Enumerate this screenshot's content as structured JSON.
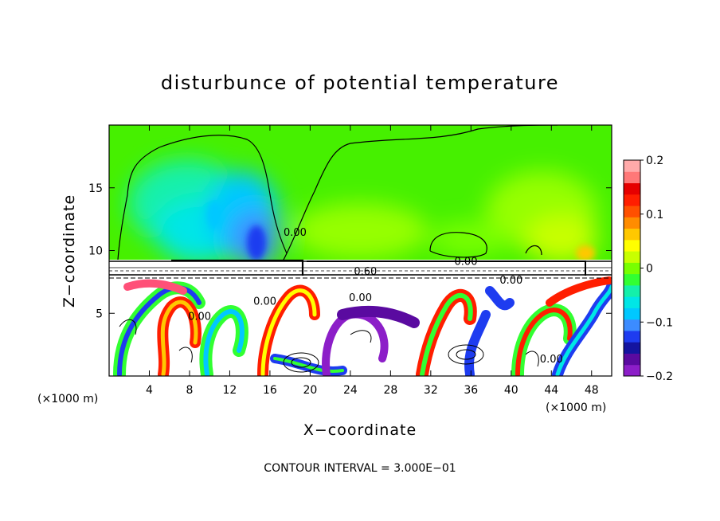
{
  "chart_data": {
    "type": "heatmap",
    "title": "disturbunce of potential temperature",
    "xlabel": "X−coordinate",
    "ylabel": "Z−coordinate",
    "x_unit": "(×1000 m)",
    "z_unit": "(×1000 m)",
    "xlim": [
      0,
      50
    ],
    "ylim": [
      0,
      20
    ],
    "x_ticks": [
      4,
      8,
      12,
      16,
      20,
      24,
      28,
      32,
      36,
      40,
      44,
      48
    ],
    "y_ticks": [
      5,
      10,
      15
    ],
    "colorbar": {
      "range": [
        -0.2,
        0.2
      ],
      "ticks": [
        {
          "value": 0.2,
          "label": "0.2"
        },
        {
          "value": 0.1,
          "label": "0.1"
        },
        {
          "value": 0,
          "label": "0"
        },
        {
          "value": -0.1,
          "label": "−0.1"
        },
        {
          "value": -0.2,
          "label": "−0.2"
        }
      ],
      "colors": [
        "#8c1ec8",
        "#5a0aa0",
        "#1414a0",
        "#1e3cf0",
        "#3c8cff",
        "#00c8ff",
        "#00e6e6",
        "#14f0aa",
        "#32ff32",
        "#78ff00",
        "#c8ff00",
        "#ffff00",
        "#ffc800",
        "#ff8c00",
        "#ff5000",
        "#ff1e00",
        "#e60000",
        "#ff7878",
        "#ffaaaa"
      ]
    },
    "contour_labels": [
      {
        "text": "0.00",
        "x": 18.5,
        "z": 11.3
      },
      {
        "text": "0.00",
        "x": 35.5,
        "z": 9.0
      },
      {
        "text": "0.60",
        "x": 25.5,
        "z": 8.2
      },
      {
        "text": "0.00",
        "x": 40.0,
        "z": 7.5
      },
      {
        "text": "0.00",
        "x": 25.0,
        "z": 6.1
      },
      {
        "text": "0.00",
        "x": 15.5,
        "z": 5.8
      },
      {
        "text": "0.00",
        "x": 9.0,
        "z": 4.6
      },
      {
        "text": "0.00",
        "x": 44.0,
        "z": 1.2
      }
    ],
    "contour_interval_text": "CONTOUR INTERVAL = 3.000E−01"
  }
}
